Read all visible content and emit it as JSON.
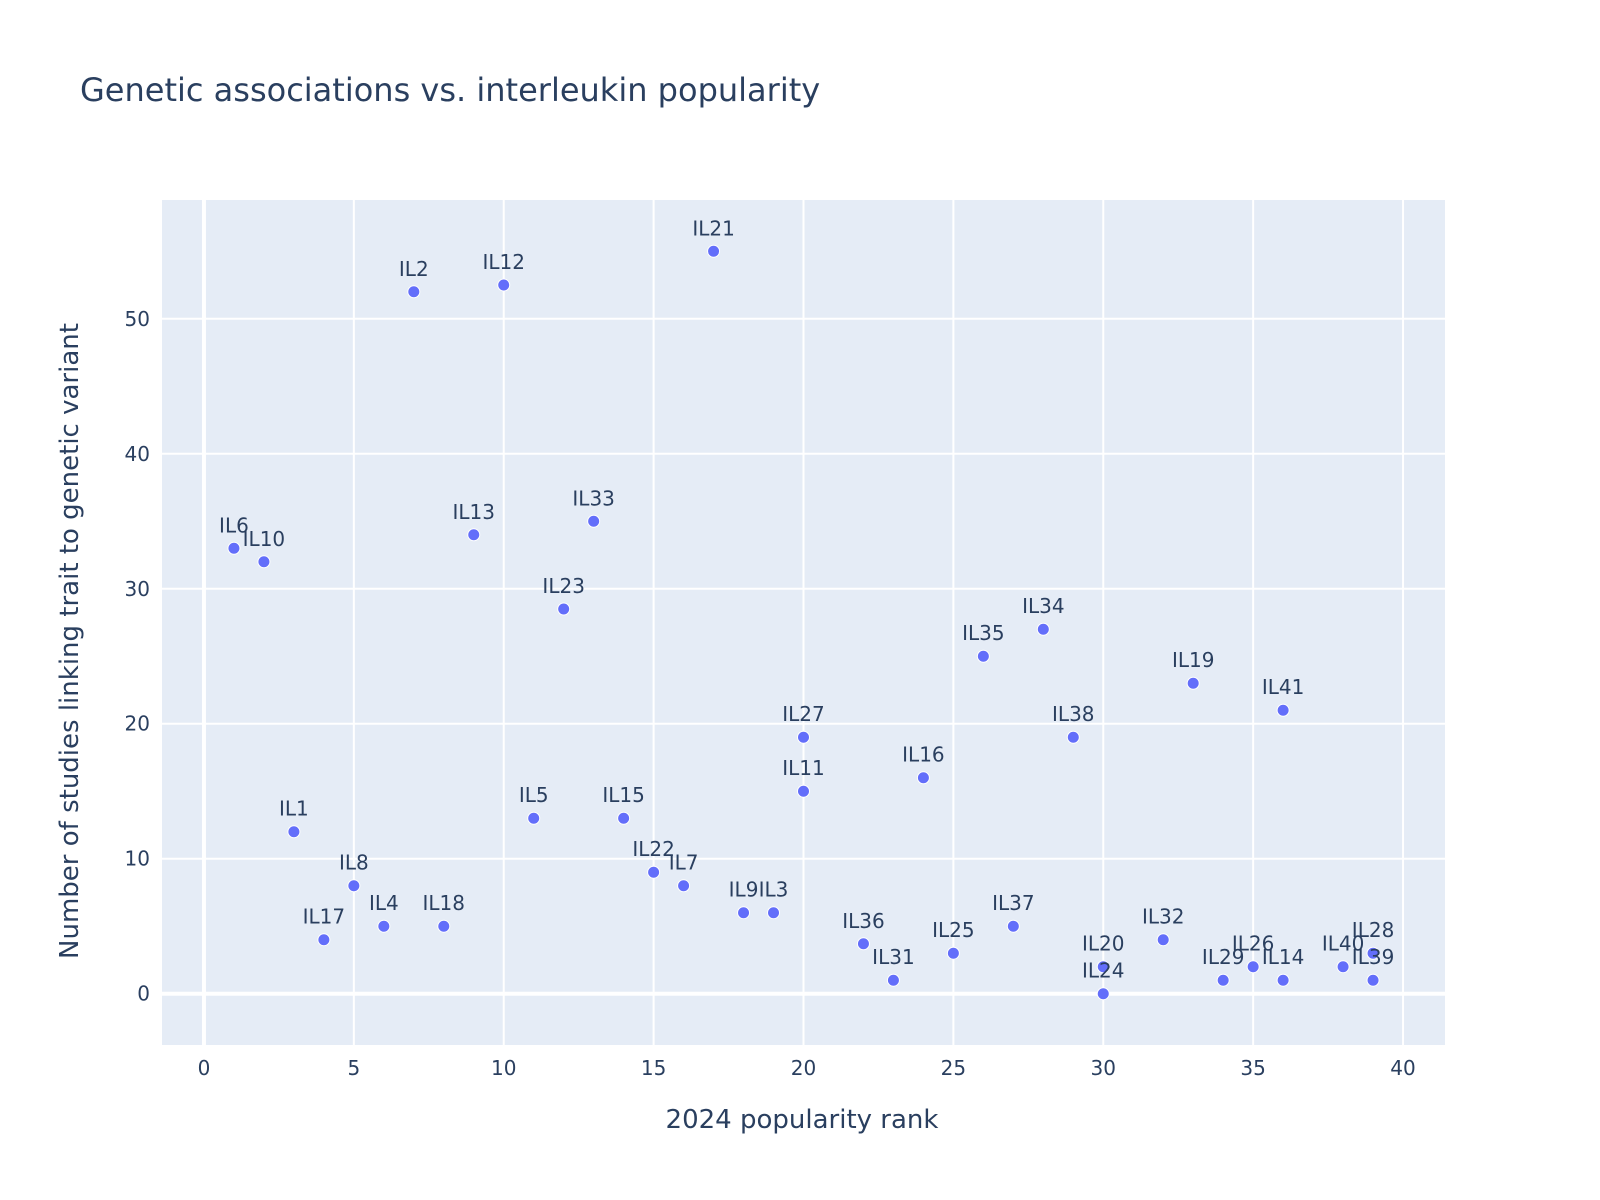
{
  "chart_data": {
    "type": "scatter",
    "title": "Genetic associations vs. interleukin popularity",
    "xlabel": "2024 popularity rank",
    "ylabel": "Number of studies linking trait to genetic variant",
    "xlim": [
      -1.4,
      41.4
    ],
    "ylim": [
      -3.8,
      58.8
    ],
    "xticks": [
      0,
      5,
      10,
      15,
      20,
      25,
      30,
      35,
      40
    ],
    "yticks": [
      0,
      10,
      20,
      30,
      40,
      50
    ],
    "grid": true,
    "color": "#636efa",
    "background": "#e5ecf6",
    "points": [
      {
        "label": "IL6",
        "x": 1,
        "y": 33
      },
      {
        "label": "IL10",
        "x": 2,
        "y": 32
      },
      {
        "label": "IL1",
        "x": 3,
        "y": 12
      },
      {
        "label": "IL17",
        "x": 4,
        "y": 4
      },
      {
        "label": "IL8",
        "x": 5,
        "y": 8
      },
      {
        "label": "IL4",
        "x": 6,
        "y": 5
      },
      {
        "label": "IL2",
        "x": 7,
        "y": 52
      },
      {
        "label": "IL18",
        "x": 8,
        "y": 5
      },
      {
        "label": "IL13",
        "x": 9,
        "y": 34
      },
      {
        "label": "IL12",
        "x": 10,
        "y": 52.5
      },
      {
        "label": "IL5",
        "x": 11,
        "y": 13
      },
      {
        "label": "IL23",
        "x": 12,
        "y": 28.5
      },
      {
        "label": "IL33",
        "x": 13,
        "y": 35
      },
      {
        "label": "IL15",
        "x": 14,
        "y": 13
      },
      {
        "label": "IL22",
        "x": 15,
        "y": 9
      },
      {
        "label": "IL7",
        "x": 16,
        "y": 8
      },
      {
        "label": "IL21",
        "x": 17,
        "y": 55
      },
      {
        "label": "IL9",
        "x": 18,
        "y": 6
      },
      {
        "label": "IL3",
        "x": 19,
        "y": 6
      },
      {
        "label": "IL27",
        "x": 20,
        "y": 19
      },
      {
        "label": "IL11",
        "x": 20,
        "y": 15
      },
      {
        "label": "IL36",
        "x": 22,
        "y": 3.7
      },
      {
        "label": "IL31",
        "x": 23,
        "y": 1
      },
      {
        "label": "IL16",
        "x": 24,
        "y": 16
      },
      {
        "label": "IL25",
        "x": 25,
        "y": 3
      },
      {
        "label": "IL35",
        "x": 26,
        "y": 25
      },
      {
        "label": "IL37",
        "x": 27,
        "y": 5
      },
      {
        "label": "IL34",
        "x": 28,
        "y": 27
      },
      {
        "label": "IL38",
        "x": 29,
        "y": 19
      },
      {
        "label": "IL20",
        "x": 30,
        "y": 2
      },
      {
        "label": "IL24",
        "x": 30,
        "y": 0
      },
      {
        "label": "IL32",
        "x": 32,
        "y": 4
      },
      {
        "label": "IL19",
        "x": 33,
        "y": 23
      },
      {
        "label": "IL29",
        "x": 34,
        "y": 1
      },
      {
        "label": "IL26",
        "x": 35,
        "y": 2
      },
      {
        "label": "IL14",
        "x": 36,
        "y": 1
      },
      {
        "label": "IL41",
        "x": 36,
        "y": 21
      },
      {
        "label": "IL40",
        "x": 38,
        "y": 2
      },
      {
        "label": "IL28",
        "x": 39,
        "y": 3
      },
      {
        "label": "IL39",
        "x": 39,
        "y": 1
      }
    ]
  }
}
